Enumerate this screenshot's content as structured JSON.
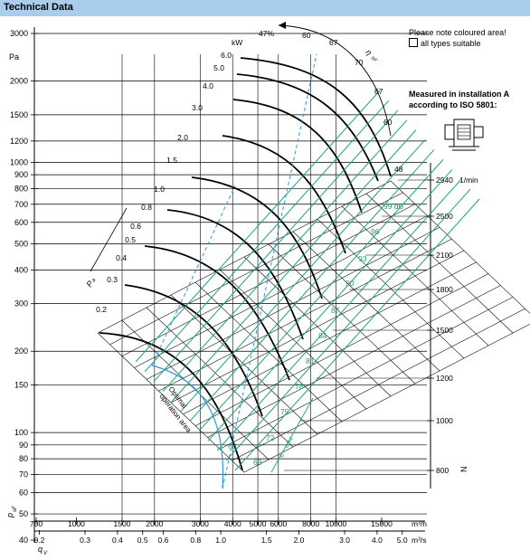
{
  "header": {
    "title": "Technical Data"
  },
  "notes": {
    "coloured_area": "Please note coloured area!",
    "suitable": "all types suitable",
    "measured_line1": "Measured in installation A",
    "measured_line2": "according to ISO 5801:"
  },
  "chart_data": {
    "type": "line",
    "title": "",
    "y_axis": {
      "unit_label": "Pa",
      "scale": "log",
      "ticks": [
        "3000",
        "2000",
        "1500",
        "1200",
        "1000",
        "900",
        "800",
        "700",
        "600",
        "500",
        "400",
        "300",
        "200",
        "150",
        "100",
        "90",
        "80",
        "70",
        "60",
        "50",
        "40"
      ],
      "range": [
        40,
        3000
      ]
    },
    "y_axis_label": "p",
    "y_axis_label_sub": "sF",
    "x_axis_m3h": {
      "unit_label": "m³/h",
      "scale": "log",
      "ticks": [
        "700",
        "1000",
        "1500",
        "2000",
        "3000",
        "4000",
        "5000",
        "6000",
        "8000",
        "10000",
        "15000"
      ]
    },
    "x_axis_m3s": {
      "unit_label": "m³/s",
      "ticks": [
        "0.2",
        "0.3",
        "0.4",
        "0.5",
        "0.6",
        "0.8",
        "1.0",
        "1.5",
        "2.0",
        "3.0",
        "4.0",
        "5.0"
      ]
    },
    "x_axis_label": "q",
    "x_axis_label_sub": "V",
    "speed_axis": {
      "unit_label": "1/min",
      "symbol": "N",
      "ticks": [
        "2940",
        "2500",
        "2100",
        "1800",
        "1500",
        "1200",
        "1000",
        "800"
      ]
    },
    "power_lines_kW": [
      "0.2",
      "0.3",
      "0.4",
      "0.5",
      "0.6",
      "0.8",
      "1.0",
      "1.5",
      "2.0",
      "3.0",
      "4.0",
      "5.0",
      "6.0"
    ],
    "power_unit": "kW",
    "power_axis_symbol": "P",
    "power_axis_symbol_sub": "a",
    "efficiency_labels_top": [
      "47%",
      "60",
      "67",
      "70",
      "67",
      "60",
      "48"
    ],
    "efficiency_symbol": "η",
    "efficiency_symbol_sub": "sF",
    "sound_labels_dB": [
      "99 dB",
      "96",
      "93",
      "90",
      "87",
      "84",
      "81",
      "78",
      "75",
      "72",
      "69",
      "66"
    ],
    "sound_symbol": "L",
    "sound_symbol_sub": "WA4",
    "optimal_label_line1": "Optimal",
    "optimal_label_line2": "operation area",
    "colors": {
      "header": "#a9cdea",
      "grid": "#000000",
      "sound_lines": "#1aa37a",
      "optimal_line": "#2e9ad6",
      "fan_curves": "#000000"
    }
  }
}
